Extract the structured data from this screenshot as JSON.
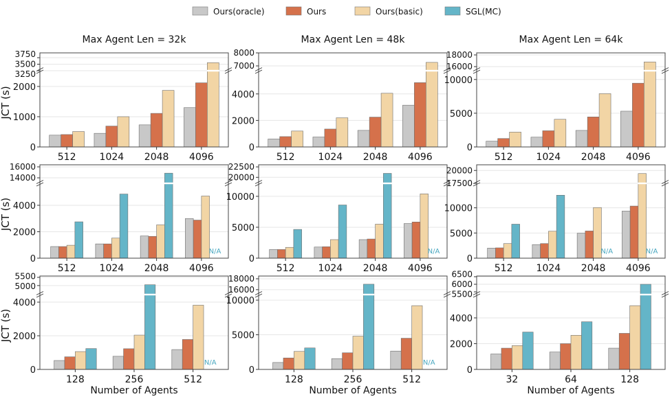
{
  "legend": [
    {
      "name": "Ours(oracle)",
      "color": "#c8c8c8"
    },
    {
      "name": "Ours",
      "color": "#d5714b"
    },
    {
      "name": "Ours(basic)",
      "color": "#f2d5a5"
    },
    {
      "name": "SGL(MC)",
      "color": "#64b5c8"
    }
  ],
  "na_label": "N/A",
  "na_color": "#4aa8c0",
  "chart_data": [
    {
      "type": "bar",
      "title": "Max Agent Len = 32k",
      "ylabel": "JCT (s)",
      "xlabel": "",
      "broken_y_axis": true,
      "categories": [
        "512",
        "1024",
        "2048",
        "4096"
      ],
      "series": [
        {
          "name": "Ours(oracle)",
          "values": [
            390,
            450,
            730,
            1300
          ]
        },
        {
          "name": "Ours",
          "values": [
            410,
            690,
            1110,
            2120
          ]
        },
        {
          "name": "Ours(basic)",
          "values": [
            510,
            1000,
            1870,
            3560
          ]
        }
      ],
      "ylim_lower": [
        0,
        2520
      ],
      "ylim_upper": [
        3250,
        3935
      ],
      "yticks_lower": [
        0,
        1000,
        2000
      ],
      "yticks_upper": [
        3250,
        3500,
        3750
      ]
    },
    {
      "type": "bar",
      "title": "Max Agent Len = 48k",
      "ylabel": "",
      "xlabel": "",
      "broken_y_axis": true,
      "categories": [
        "512",
        "1024",
        "2048",
        "4096"
      ],
      "series": [
        {
          "name": "Ours(oracle)",
          "values": [
            600,
            750,
            1250,
            3150
          ]
        },
        {
          "name": "Ours",
          "values": [
            780,
            1350,
            2250,
            4850
          ]
        },
        {
          "name": "Ours(basic)",
          "values": [
            1200,
            2200,
            4050,
            7270
          ]
        }
      ],
      "ylim_lower": [
        0,
        5750
      ],
      "ylim_upper": [
        6630,
        8000
      ],
      "yticks_lower": [
        0,
        2000,
        4000
      ],
      "yticks_upper": [
        7000,
        8000
      ]
    },
    {
      "type": "bar",
      "title": "Max Agent Len = 64k",
      "ylabel": "",
      "xlabel": "",
      "broken_y_axis": true,
      "categories": [
        "512",
        "1024",
        "2048",
        "4096"
      ],
      "series": [
        {
          "name": "Ours(oracle)",
          "values": [
            850,
            1450,
            2450,
            5300
          ]
        },
        {
          "name": "Ours",
          "values": [
            1250,
            2400,
            4450,
            9450
          ]
        },
        {
          "name": "Ours(basic)",
          "values": [
            2200,
            4100,
            7900,
            16800
          ]
        }
      ],
      "ylim_lower": [
        0,
        11300
      ],
      "ylim_upper": [
        15300,
        18350
      ],
      "yticks_lower": [
        0,
        5000,
        10000
      ],
      "yticks_upper": [
        16000,
        18000
      ]
    },
    {
      "type": "bar",
      "title": "",
      "ylabel": "JCT (s)",
      "xlabel": "",
      "broken_y_axis": true,
      "categories": [
        "512",
        "1024",
        "2048",
        "4096"
      ],
      "series": [
        {
          "name": "Ours(oracle)",
          "values": [
            880,
            1080,
            1680,
            3000
          ]
        },
        {
          "name": "Ours",
          "values": [
            880,
            1080,
            1650,
            2880
          ]
        },
        {
          "name": "Ours(basic)",
          "values": [
            980,
            1520,
            2520,
            4700
          ]
        },
        {
          "name": "SGL(MC)",
          "values": [
            2750,
            4850,
            14850,
            null
          ]
        }
      ],
      "ylim_lower": [
        0,
        5660
      ],
      "ylim_upper": [
        13000,
        16375
      ],
      "yticks_lower": [
        0,
        2000,
        4000
      ],
      "yticks_upper": [
        14000,
        16000
      ]
    },
    {
      "type": "bar",
      "title": "",
      "ylabel": "",
      "xlabel": "",
      "broken_y_axis": true,
      "categories": [
        "512",
        "1024",
        "2048",
        "4096"
      ],
      "series": [
        {
          "name": "Ours(oracle)",
          "values": [
            1400,
            1800,
            3000,
            5600
          ]
        },
        {
          "name": "Ours",
          "values": [
            1400,
            1850,
            3100,
            5850
          ]
        },
        {
          "name": "Ours(basic)",
          "values": [
            1750,
            3000,
            5500,
            10400
          ]
        },
        {
          "name": "SGL(MC)",
          "values": [
            4650,
            8600,
            20950,
            null
          ]
        }
      ],
      "ylim_lower": [
        0,
        12100
      ],
      "ylim_upper": [
        18570,
        23000
      ],
      "yticks_lower": [
        0,
        5000,
        10000
      ],
      "yticks_upper": [
        20000,
        22500
      ]
    },
    {
      "type": "bar",
      "title": "",
      "ylabel": "",
      "xlabel": "",
      "broken_y_axis": true,
      "categories": [
        "512",
        "1024",
        "2048",
        "4096"
      ],
      "series": [
        {
          "name": "Ours(oracle)",
          "values": [
            2000,
            2700,
            4950,
            9350
          ]
        },
        {
          "name": "Ours",
          "values": [
            2050,
            2900,
            5400,
            10350
          ]
        },
        {
          "name": "Ours(basic)",
          "values": [
            2900,
            5350,
            10050,
            19400
          ]
        },
        {
          "name": "SGL(MC)",
          "values": [
            6750,
            12500,
            null,
            null
          ]
        }
      ],
      "ylim_lower": [
        0,
        14860
      ],
      "ylim_upper": [
        17500,
        21100
      ],
      "yticks_lower": [
        0,
        5000,
        10000
      ],
      "yticks_upper": [
        17500,
        20000
      ]
    },
    {
      "type": "bar",
      "title": "",
      "ylabel": "JCT (s)",
      "xlabel": "Number of Agents",
      "broken_y_axis": true,
      "categories": [
        "128",
        "256",
        "512"
      ],
      "series": [
        {
          "name": "Ours(oracle)",
          "values": [
            530,
            780,
            1180
          ]
        },
        {
          "name": "Ours",
          "values": [
            750,
            1230,
            1780
          ]
        },
        {
          "name": "Ours(basic)",
          "values": [
            1060,
            2040,
            3820
          ]
        },
        {
          "name": "SGL(MC)",
          "values": [
            1240,
            5050,
            null
          ]
        }
      ],
      "ylim_lower": [
        0,
        4450
      ],
      "ylim_upper": [
        4450,
        5580
      ],
      "yticks_lower": [
        0,
        2000,
        4000
      ],
      "yticks_upper": [
        5000,
        5500
      ]
    },
    {
      "type": "bar",
      "title": "",
      "ylabel": "",
      "xlabel": "Number of Agents",
      "broken_y_axis": true,
      "categories": [
        "128",
        "256",
        "512"
      ],
      "series": [
        {
          "name": "Ours(oracle)",
          "values": [
            1000,
            1550,
            2650
          ]
        },
        {
          "name": "Ours",
          "values": [
            1650,
            2400,
            4500
          ]
        },
        {
          "name": "Ours(basic)",
          "values": [
            2600,
            4800,
            9200
          ]
        },
        {
          "name": "SGL(MC)",
          "values": [
            3100,
            17000,
            null
          ]
        }
      ],
      "ylim_lower": [
        0,
        10800
      ],
      "ylim_upper": [
        15100,
        18500
      ],
      "yticks_lower": [
        0,
        5000,
        10000
      ],
      "yticks_upper": [
        16000,
        18000
      ]
    },
    {
      "type": "bar",
      "title": "",
      "ylabel": "",
      "xlabel": "Number of Agents",
      "broken_y_axis": true,
      "categories": [
        "32",
        "64",
        "128"
      ],
      "series": [
        {
          "name": "Ours(oracle)",
          "values": [
            1200,
            1350,
            1650
          ]
        },
        {
          "name": "Ours",
          "values": [
            1650,
            2000,
            2800
          ]
        },
        {
          "name": "Ours(basic)",
          "values": [
            1850,
            2650,
            4950
          ]
        },
        {
          "name": "SGL(MC)",
          "values": [
            2900,
            3700,
            6000
          ]
        }
      ],
      "ylim_lower": [
        0,
        5810
      ],
      "ylim_upper": [
        5320,
        6545
      ],
      "yticks_lower": [
        0,
        2000,
        4000
      ],
      "yticks_upper": [
        5500,
        6000,
        6500
      ]
    }
  ]
}
